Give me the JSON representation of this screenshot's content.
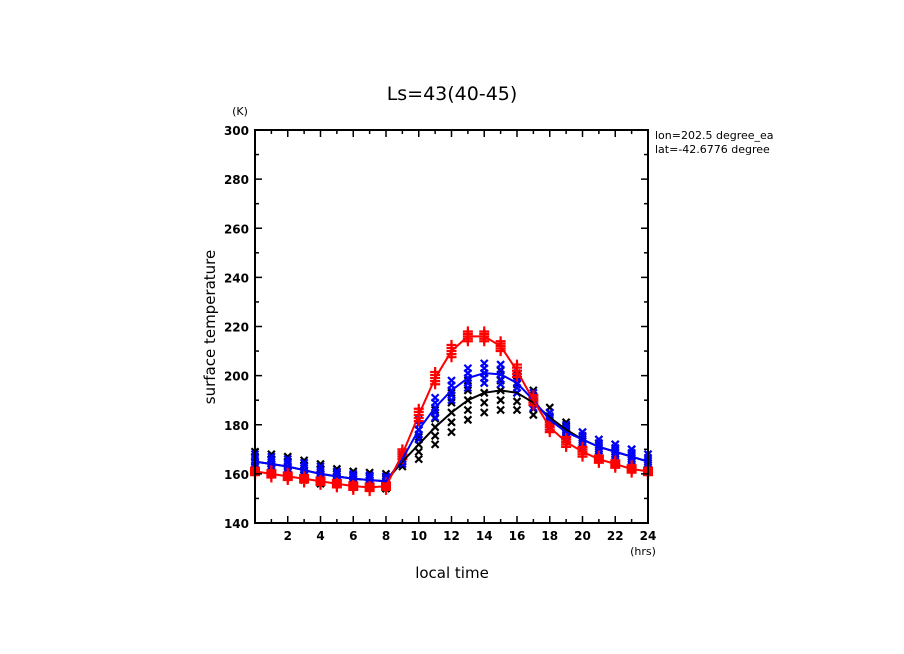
{
  "chart_data": {
    "type": "line",
    "title": "Ls=43(40-45)",
    "xlabel": "local time",
    "xunit": "(hrs)",
    "ylabel": "surface temperature",
    "yunit": "(K)",
    "xlim": [
      0,
      24
    ],
    "ylim": [
      140,
      300
    ],
    "xticks": [
      2,
      4,
      6,
      8,
      10,
      12,
      14,
      16,
      18,
      20,
      22,
      24
    ],
    "yticks": [
      140,
      160,
      180,
      200,
      220,
      240,
      260,
      280,
      300
    ],
    "annotations": [
      "lon=202.5 degree_ea",
      "lat=-42.6776 degree"
    ],
    "grid": false,
    "x": [
      0,
      1,
      2,
      3,
      4,
      5,
      6,
      7,
      8,
      9,
      10,
      11,
      12,
      13,
      14,
      15,
      16,
      17,
      18,
      19,
      20,
      21,
      22,
      23,
      24
    ],
    "series": [
      {
        "name": "black",
        "color": "#000000",
        "marker": "x",
        "values": [
          165,
          164,
          163,
          161.5,
          160,
          159,
          158,
          157.5,
          157,
          165,
          172,
          179,
          185,
          190,
          193,
          194,
          193,
          189,
          183,
          178,
          174,
          171,
          169,
          167,
          165
        ],
        "spread": [
          4,
          4,
          4,
          4,
          4,
          3,
          3,
          3,
          3,
          2,
          6,
          7,
          8,
          8,
          8,
          8,
          7,
          5,
          4,
          3,
          3,
          3,
          3,
          3,
          3
        ]
      },
      {
        "name": "blue",
        "color": "#0000ff",
        "marker": "x",
        "values": [
          165,
          164,
          163,
          161.5,
          160,
          159,
          158,
          157.5,
          157,
          166,
          178,
          187,
          194,
          199,
          201,
          200.5,
          197,
          190,
          182,
          177,
          174,
          171,
          169,
          167,
          165
        ],
        "spread": [
          3,
          3,
          3,
          3,
          3,
          2,
          2,
          2,
          2,
          2,
          4,
          4,
          4,
          4,
          4,
          4,
          4,
          3,
          3,
          3,
          3,
          3,
          3,
          3,
          3
        ]
      },
      {
        "name": "red",
        "color": "#ff0000",
        "marker": "+",
        "values": [
          161,
          160,
          159,
          158,
          157,
          156,
          155,
          154.5,
          155,
          168,
          184,
          199,
          210,
          216,
          216,
          212,
          202,
          190,
          179,
          173,
          169,
          166,
          164,
          162,
          161
        ],
        "spread": [
          1.5,
          1.5,
          1.5,
          1.5,
          1.5,
          1.5,
          1.5,
          1.5,
          1.5,
          2,
          2.5,
          2.5,
          2.5,
          2,
          2,
          2,
          2.5,
          2,
          2,
          2,
          2,
          1.5,
          1.5,
          1.5,
          1.5
        ]
      }
    ]
  }
}
